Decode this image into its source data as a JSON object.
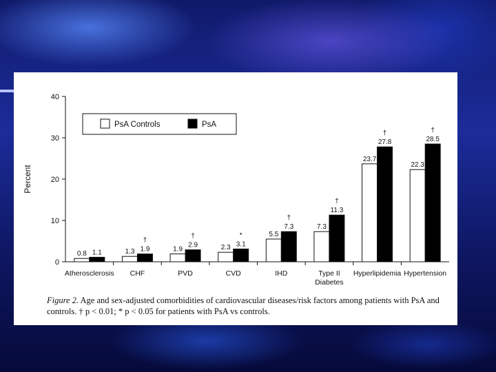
{
  "chart_data": {
    "type": "bar",
    "categories": [
      "Atherosclerosis",
      "CHF",
      "PVD",
      "CVD",
      "IHD",
      "Type II\nDiabetes",
      "Hyperlipidemia",
      "Hypertension"
    ],
    "series": [
      {
        "name": "PsA Controls",
        "values": [
          0.8,
          1.3,
          1.9,
          2.3,
          5.5,
          7.3,
          23.7,
          22.3
        ],
        "color": "#ffffff"
      },
      {
        "name": "PsA",
        "values": [
          1.1,
          1.9,
          2.9,
          3.1,
          7.3,
          11.3,
          27.8,
          28.5
        ],
        "color": "#000000"
      }
    ],
    "significance": [
      "",
      "†",
      "†",
      "*",
      "†",
      "†",
      "†",
      "†"
    ],
    "ylabel": "Percent",
    "ylim": [
      0,
      40
    ],
    "yticks": [
      0,
      10,
      20,
      30,
      40
    ],
    "legend_position": "top-left",
    "grid": false
  },
  "caption": {
    "label": "Figure 2.",
    "text": "Age and sex-adjusted comorbidities of cardiovascular diseases/risk factors among patients with PsA and controls. † p < 0.01; * p < 0.05 for patients with PsA vs controls."
  }
}
